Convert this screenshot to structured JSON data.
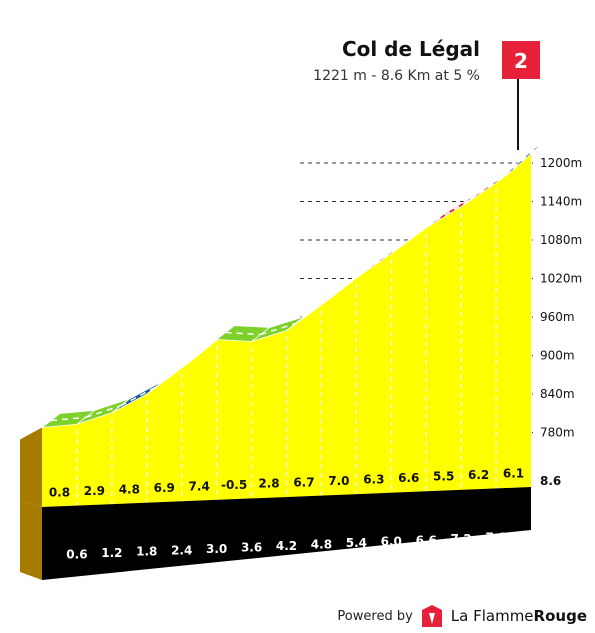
{
  "header": {
    "title": "Col de Légal",
    "subtitle": "1221 m - 8.6 Km at 5 %",
    "category": "2"
  },
  "footer": {
    "powered_by": "Powered by",
    "brand_light": "La Flamme",
    "brand_bold": "Rouge"
  },
  "colors": {
    "fill": "#ffff00",
    "band_green": "#7cd12b",
    "band_blue": "#1a5c96",
    "band_red": "#e8213a",
    "base_dark": "#000000",
    "base_side": "#a57c00"
  },
  "chart_data": {
    "type": "area",
    "title": "Col de Légal",
    "subtitle": "1221 m - 8.6 Km at 5 %",
    "y_unit": "m",
    "y_ticks": [
      "780m",
      "840m",
      "900m",
      "960m",
      "1020m",
      "1080m",
      "1140m",
      "1200m"
    ],
    "y_tick_values": [
      780,
      840,
      900,
      960,
      1020,
      1080,
      1140,
      1200
    ],
    "km_labels": [
      "0.6",
      "1.2",
      "1.8",
      "2.4",
      "3.0",
      "3.6",
      "4.2",
      "4.8",
      "5.4",
      "6.0",
      "6.6",
      "7.2",
      "7.8"
    ],
    "km_end_label": "8.6",
    "segments": [
      {
        "gradient": "0.8",
        "color": "green",
        "alt_end": 793
      },
      {
        "gradient": "2.9",
        "color": "green",
        "alt_end": 811
      },
      {
        "gradient": "4.8",
        "color": "blue",
        "alt_end": 840
      },
      {
        "gradient": "6.9",
        "color": "red",
        "alt_end": 881
      },
      {
        "gradient": "7.4",
        "color": "red",
        "alt_end": 925
      },
      {
        "gradient": "-0.5",
        "color": "green",
        "alt_end": 922
      },
      {
        "gradient": "2.8",
        "color": "green",
        "alt_end": 939
      },
      {
        "gradient": "6.7",
        "color": "red",
        "alt_end": 979
      },
      {
        "gradient": "7.0",
        "color": "red",
        "alt_end": 1021
      },
      {
        "gradient": "6.3",
        "color": "red",
        "alt_end": 1059
      },
      {
        "gradient": "6.6",
        "color": "blue",
        "alt_end": 1099
      },
      {
        "gradient": "5.5",
        "color": "red",
        "alt_end": 1132
      },
      {
        "gradient": "6.2",
        "color": "red",
        "alt_end": 1169
      },
      {
        "gradient": "6.1",
        "color": "blue",
        "alt_end": 1218
      }
    ],
    "alt_start": 788,
    "ylim": [
      760,
      1230
    ],
    "grid": true
  }
}
